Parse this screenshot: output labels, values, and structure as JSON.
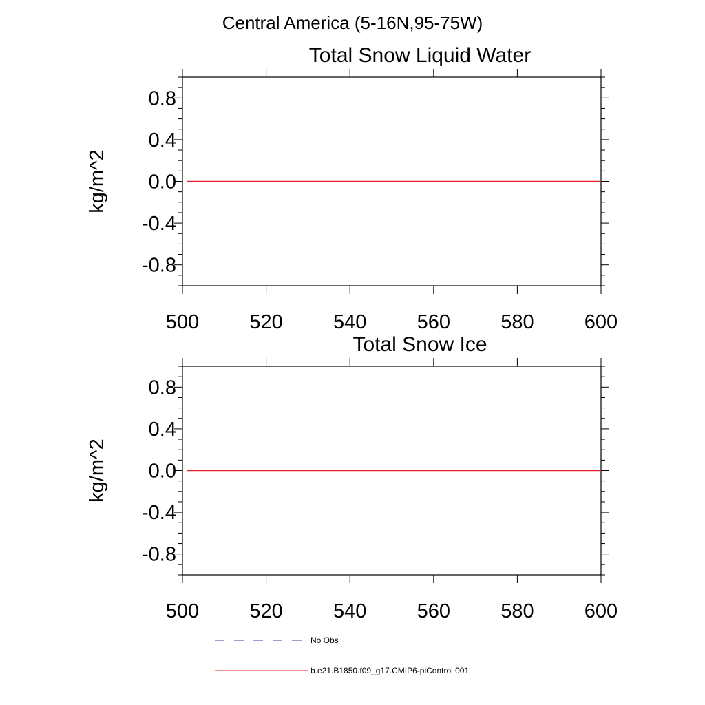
{
  "figure": {
    "suptitle": "Central America (5-16N,95-75W)"
  },
  "chart_data": [
    {
      "type": "line",
      "title": "Total Snow Liquid Water",
      "xlabel": "",
      "ylabel": "kg/m^2",
      "xlim": [
        500,
        600
      ],
      "ylim": [
        -1.0,
        1.0
      ],
      "x_ticks": [
        500,
        520,
        540,
        560,
        580,
        600
      ],
      "x_tick_labels": [
        "500",
        "520",
        "540",
        "560",
        "580",
        "600"
      ],
      "y_ticks": [
        0.8,
        0.4,
        0.0,
        -0.4,
        -0.8
      ],
      "y_tick_labels": [
        "0.8",
        "0.4",
        "0.0",
        "-0.4",
        "-0.8"
      ],
      "grid": false,
      "series": [
        {
          "name": "b.e21.B1850.f09_g17.CMIP6-piControl.001",
          "color": "#e8212a",
          "style": "solid",
          "x": [
            501,
            600
          ],
          "values": [
            0.0,
            0.0
          ]
        }
      ]
    },
    {
      "type": "line",
      "title": "Total Snow Ice",
      "xlabel": "",
      "ylabel": "kg/m^2",
      "xlim": [
        500,
        600
      ],
      "ylim": [
        -1.0,
        1.0
      ],
      "x_ticks": [
        500,
        520,
        540,
        560,
        580,
        600
      ],
      "x_tick_labels": [
        "500",
        "520",
        "540",
        "560",
        "580",
        "600"
      ],
      "y_ticks": [
        0.8,
        0.4,
        0.0,
        -0.4,
        -0.8
      ],
      "y_tick_labels": [
        "0.8",
        "0.4",
        "0.0",
        "-0.4",
        "-0.8"
      ],
      "grid": false,
      "series": [
        {
          "name": "b.e21.B1850.f09_g17.CMIP6-piControl.001",
          "color": "#e8212a",
          "style": "solid",
          "x": [
            501,
            600
          ],
          "values": [
            0.0,
            0.0
          ]
        }
      ]
    }
  ],
  "legend": {
    "placement": "bottom",
    "entries": [
      {
        "label": "No Obs",
        "color": "#3a3f8f",
        "style": "dashed"
      },
      {
        "label": "b.e21.B1850.f09_g17.CMIP6-piControl.001",
        "color": "#e8212a",
        "style": "solid"
      }
    ]
  }
}
